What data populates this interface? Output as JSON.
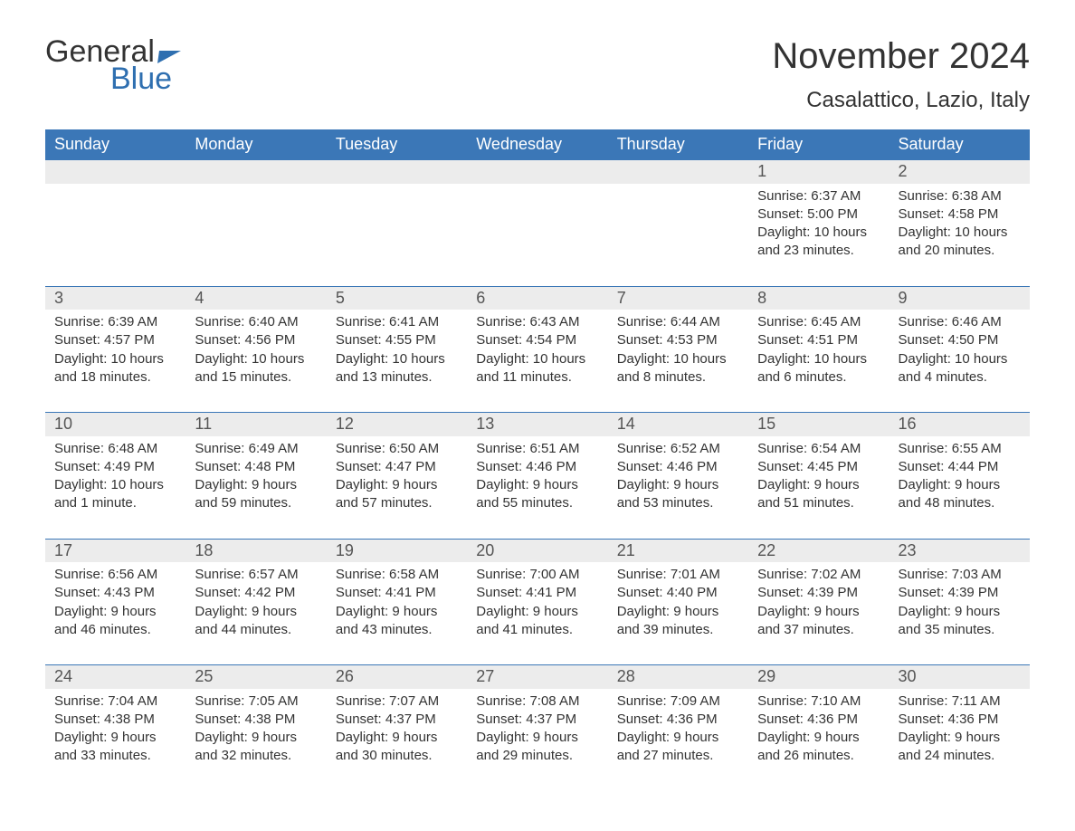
{
  "logo": {
    "word1": "General",
    "word2": "Blue"
  },
  "title": "November 2024",
  "subtitle": "Casalattico, Lazio, Italy",
  "colors": {
    "header_bg": "#3b77b7",
    "header_text": "#ffffff",
    "daynum_bg": "#ececec",
    "row_border": "#3b77b7",
    "logo_blue": "#2f6fb0",
    "body_text": "#333333",
    "page_bg": "#ffffff"
  },
  "typography": {
    "title_fontsize": 40,
    "subtitle_fontsize": 24,
    "header_fontsize": 18,
    "daynum_fontsize": 18,
    "cell_fontsize": 15
  },
  "layout": {
    "columns": 7,
    "week_rows": 5,
    "leading_blanks": 5
  },
  "day_headers": [
    "Sunday",
    "Monday",
    "Tuesday",
    "Wednesday",
    "Thursday",
    "Friday",
    "Saturday"
  ],
  "weeks": [
    [
      null,
      null,
      null,
      null,
      null,
      {
        "n": "1",
        "sunrise": "Sunrise: 6:37 AM",
        "sunset": "Sunset: 5:00 PM",
        "day1": "Daylight: 10 hours",
        "day2": "and 23 minutes."
      },
      {
        "n": "2",
        "sunrise": "Sunrise: 6:38 AM",
        "sunset": "Sunset: 4:58 PM",
        "day1": "Daylight: 10 hours",
        "day2": "and 20 minutes."
      }
    ],
    [
      {
        "n": "3",
        "sunrise": "Sunrise: 6:39 AM",
        "sunset": "Sunset: 4:57 PM",
        "day1": "Daylight: 10 hours",
        "day2": "and 18 minutes."
      },
      {
        "n": "4",
        "sunrise": "Sunrise: 6:40 AM",
        "sunset": "Sunset: 4:56 PM",
        "day1": "Daylight: 10 hours",
        "day2": "and 15 minutes."
      },
      {
        "n": "5",
        "sunrise": "Sunrise: 6:41 AM",
        "sunset": "Sunset: 4:55 PM",
        "day1": "Daylight: 10 hours",
        "day2": "and 13 minutes."
      },
      {
        "n": "6",
        "sunrise": "Sunrise: 6:43 AM",
        "sunset": "Sunset: 4:54 PM",
        "day1": "Daylight: 10 hours",
        "day2": "and 11 minutes."
      },
      {
        "n": "7",
        "sunrise": "Sunrise: 6:44 AM",
        "sunset": "Sunset: 4:53 PM",
        "day1": "Daylight: 10 hours",
        "day2": "and 8 minutes."
      },
      {
        "n": "8",
        "sunrise": "Sunrise: 6:45 AM",
        "sunset": "Sunset: 4:51 PM",
        "day1": "Daylight: 10 hours",
        "day2": "and 6 minutes."
      },
      {
        "n": "9",
        "sunrise": "Sunrise: 6:46 AM",
        "sunset": "Sunset: 4:50 PM",
        "day1": "Daylight: 10 hours",
        "day2": "and 4 minutes."
      }
    ],
    [
      {
        "n": "10",
        "sunrise": "Sunrise: 6:48 AM",
        "sunset": "Sunset: 4:49 PM",
        "day1": "Daylight: 10 hours",
        "day2": "and 1 minute."
      },
      {
        "n": "11",
        "sunrise": "Sunrise: 6:49 AM",
        "sunset": "Sunset: 4:48 PM",
        "day1": "Daylight: 9 hours",
        "day2": "and 59 minutes."
      },
      {
        "n": "12",
        "sunrise": "Sunrise: 6:50 AM",
        "sunset": "Sunset: 4:47 PM",
        "day1": "Daylight: 9 hours",
        "day2": "and 57 minutes."
      },
      {
        "n": "13",
        "sunrise": "Sunrise: 6:51 AM",
        "sunset": "Sunset: 4:46 PM",
        "day1": "Daylight: 9 hours",
        "day2": "and 55 minutes."
      },
      {
        "n": "14",
        "sunrise": "Sunrise: 6:52 AM",
        "sunset": "Sunset: 4:46 PM",
        "day1": "Daylight: 9 hours",
        "day2": "and 53 minutes."
      },
      {
        "n": "15",
        "sunrise": "Sunrise: 6:54 AM",
        "sunset": "Sunset: 4:45 PM",
        "day1": "Daylight: 9 hours",
        "day2": "and 51 minutes."
      },
      {
        "n": "16",
        "sunrise": "Sunrise: 6:55 AM",
        "sunset": "Sunset: 4:44 PM",
        "day1": "Daylight: 9 hours",
        "day2": "and 48 minutes."
      }
    ],
    [
      {
        "n": "17",
        "sunrise": "Sunrise: 6:56 AM",
        "sunset": "Sunset: 4:43 PM",
        "day1": "Daylight: 9 hours",
        "day2": "and 46 minutes."
      },
      {
        "n": "18",
        "sunrise": "Sunrise: 6:57 AM",
        "sunset": "Sunset: 4:42 PM",
        "day1": "Daylight: 9 hours",
        "day2": "and 44 minutes."
      },
      {
        "n": "19",
        "sunrise": "Sunrise: 6:58 AM",
        "sunset": "Sunset: 4:41 PM",
        "day1": "Daylight: 9 hours",
        "day2": "and 43 minutes."
      },
      {
        "n": "20",
        "sunrise": "Sunrise: 7:00 AM",
        "sunset": "Sunset: 4:41 PM",
        "day1": "Daylight: 9 hours",
        "day2": "and 41 minutes."
      },
      {
        "n": "21",
        "sunrise": "Sunrise: 7:01 AM",
        "sunset": "Sunset: 4:40 PM",
        "day1": "Daylight: 9 hours",
        "day2": "and 39 minutes."
      },
      {
        "n": "22",
        "sunrise": "Sunrise: 7:02 AM",
        "sunset": "Sunset: 4:39 PM",
        "day1": "Daylight: 9 hours",
        "day2": "and 37 minutes."
      },
      {
        "n": "23",
        "sunrise": "Sunrise: 7:03 AM",
        "sunset": "Sunset: 4:39 PM",
        "day1": "Daylight: 9 hours",
        "day2": "and 35 minutes."
      }
    ],
    [
      {
        "n": "24",
        "sunrise": "Sunrise: 7:04 AM",
        "sunset": "Sunset: 4:38 PM",
        "day1": "Daylight: 9 hours",
        "day2": "and 33 minutes."
      },
      {
        "n": "25",
        "sunrise": "Sunrise: 7:05 AM",
        "sunset": "Sunset: 4:38 PM",
        "day1": "Daylight: 9 hours",
        "day2": "and 32 minutes."
      },
      {
        "n": "26",
        "sunrise": "Sunrise: 7:07 AM",
        "sunset": "Sunset: 4:37 PM",
        "day1": "Daylight: 9 hours",
        "day2": "and 30 minutes."
      },
      {
        "n": "27",
        "sunrise": "Sunrise: 7:08 AM",
        "sunset": "Sunset: 4:37 PM",
        "day1": "Daylight: 9 hours",
        "day2": "and 29 minutes."
      },
      {
        "n": "28",
        "sunrise": "Sunrise: 7:09 AM",
        "sunset": "Sunset: 4:36 PM",
        "day1": "Daylight: 9 hours",
        "day2": "and 27 minutes."
      },
      {
        "n": "29",
        "sunrise": "Sunrise: 7:10 AM",
        "sunset": "Sunset: 4:36 PM",
        "day1": "Daylight: 9 hours",
        "day2": "and 26 minutes."
      },
      {
        "n": "30",
        "sunrise": "Sunrise: 7:11 AM",
        "sunset": "Sunset: 4:36 PM",
        "day1": "Daylight: 9 hours",
        "day2": "and 24 minutes."
      }
    ]
  ]
}
